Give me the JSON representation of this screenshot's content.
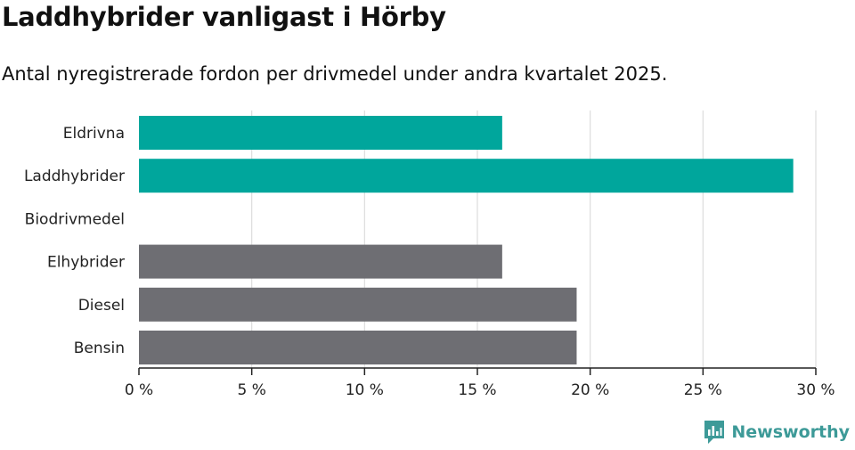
{
  "title": "Laddhybrider vanligast i Hörby",
  "subtitle": "Antal nyregistrerade fordon per drivmedel under andra kvartalet 2025.",
  "brand": {
    "name": "Newsworthy",
    "color": "#3d9a98",
    "icon": "newsworthy-logo-icon"
  },
  "colors": {
    "highlight": "#00a69c",
    "default": "#6e6e73",
    "grid": "#dddddd",
    "axis": "#222222"
  },
  "chart_data": {
    "type": "bar",
    "orientation": "horizontal",
    "categories": [
      "Eldrivna",
      "Laddhybrider",
      "Biodrivmedel",
      "Elhybrider",
      "Diesel",
      "Bensin"
    ],
    "values": [
      16.1,
      29.0,
      0,
      16.1,
      19.4,
      19.4
    ],
    "highlighted": [
      true,
      true,
      true,
      false,
      false,
      false
    ],
    "xlim": [
      0,
      30
    ],
    "xticks": [
      0,
      5,
      10,
      15,
      20,
      25,
      30
    ],
    "xtick_labels": [
      "0 %",
      "5 %",
      "10 %",
      "15 %",
      "20 %",
      "25 %",
      "30 %"
    ],
    "grid": true
  }
}
